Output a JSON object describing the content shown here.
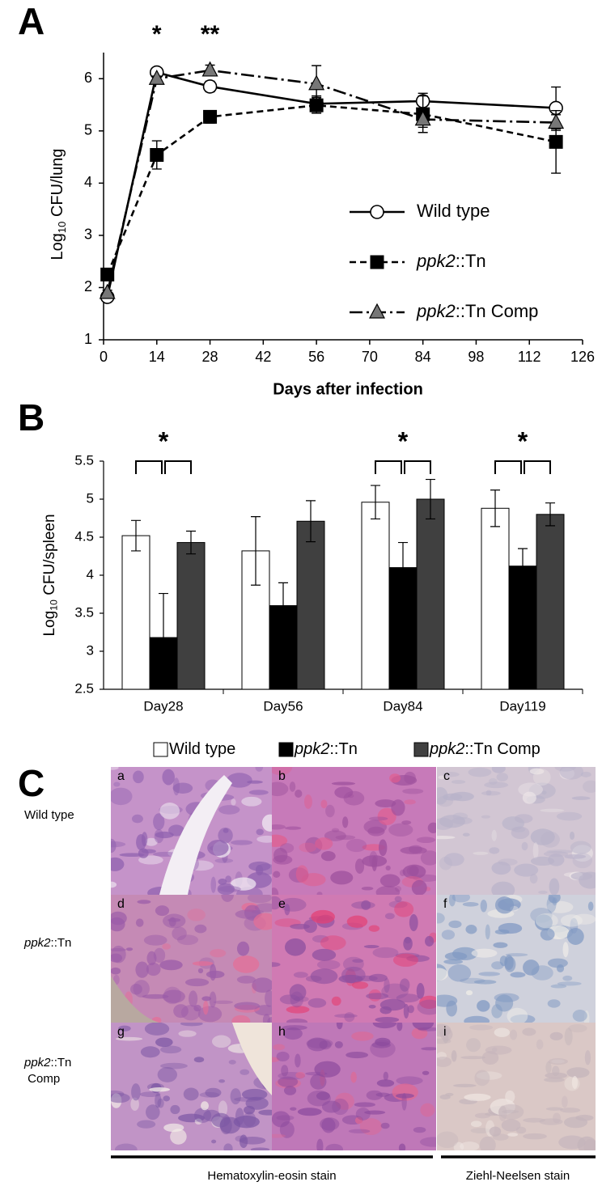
{
  "chart_data": [
    {
      "type": "line",
      "panel_label": "A",
      "x_label": "Days after infection",
      "y_label": [
        "Log",
        "10",
        " CFU/lung"
      ],
      "x": [
        1,
        14,
        28,
        56,
        84,
        119
      ],
      "xlim": [
        0,
        126
      ],
      "xticks": [
        0,
        14,
        28,
        42,
        56,
        70,
        84,
        98,
        112,
        126
      ],
      "ylim": [
        1,
        6.5
      ],
      "yticks": [
        1,
        2,
        3,
        4,
        5,
        6
      ],
      "legend": "right",
      "series": [
        {
          "name": "Wild type",
          "color": "#000000",
          "dash": "solid",
          "marker": "circle",
          "marker_fill": "#ffffff",
          "values": [
            1.82,
            6.12,
            5.85,
            5.52,
            5.57,
            5.44
          ],
          "errors": [
            0.05,
            0.05,
            0.1,
            0.15,
            0.15,
            0.4
          ]
        },
        {
          "name": "ppk2::Tn",
          "color": "#000000",
          "dash": "dashed",
          "marker": "square",
          "marker_fill": "#000000",
          "values": [
            2.25,
            4.54,
            5.27,
            5.49,
            5.32,
            4.79
          ],
          "errors": [
            0.1,
            0.27,
            0.12,
            0.15,
            0.35,
            0.6
          ]
        },
        {
          "name": "ppk2::Tn Comp",
          "color": "#000000",
          "dash": "dashdot",
          "marker": "triangle",
          "marker_fill": "#777777",
          "values": [
            1.9,
            6.0,
            6.16,
            5.9,
            5.22,
            5.16
          ],
          "errors": [
            0.05,
            0.05,
            0.1,
            0.35,
            0.15,
            0.15
          ]
        }
      ],
      "annotations": [
        {
          "text": "*",
          "x": 14
        },
        {
          "text": "**",
          "x": 28
        }
      ]
    },
    {
      "type": "bar",
      "panel_label": "B",
      "y_label": [
        "Log",
        "10",
        " CFU/spleen"
      ],
      "categories": [
        "Day28",
        "Day56",
        "Day84",
        "Day119"
      ],
      "ylim": [
        2.5,
        5.5
      ],
      "yticks": [
        2.5,
        3,
        3.5,
        4,
        4.5,
        5,
        5.5
      ],
      "legend": "bottom",
      "series": [
        {
          "name": "Wild type",
          "color": "#ffffff",
          "values": [
            4.52,
            4.32,
            4.96,
            4.88
          ],
          "errors": [
            0.2,
            0.45,
            0.22,
            0.24
          ]
        },
        {
          "name": "ppk2::Tn",
          "color": "#000000",
          "values": [
            3.18,
            3.6,
            4.1,
            4.12
          ],
          "errors": [
            0.58,
            0.3,
            0.33,
            0.23
          ]
        },
        {
          "name": "ppk2::Tn Comp",
          "color": "#404040",
          "values": [
            4.43,
            4.71,
            5.0,
            4.8
          ],
          "errors": [
            0.15,
            0.27,
            0.26,
            0.15
          ]
        }
      ],
      "annotations": [
        {
          "text": "*",
          "category": "Day28"
        },
        {
          "text": "*",
          "category": "Day84"
        },
        {
          "text": "*",
          "category": "Day119"
        }
      ]
    }
  ],
  "panel_c": {
    "label": "C",
    "row_labels": [
      "Wild type",
      "ppk2::Tn",
      "ppk2::Tn Comp"
    ],
    "cell_labels": [
      "a",
      "b",
      "c",
      "d",
      "e",
      "f",
      "g",
      "h",
      "i"
    ],
    "stains": [
      "Hematoxylin-eosin stain",
      "Ziehl-Neelsen stain"
    ]
  }
}
